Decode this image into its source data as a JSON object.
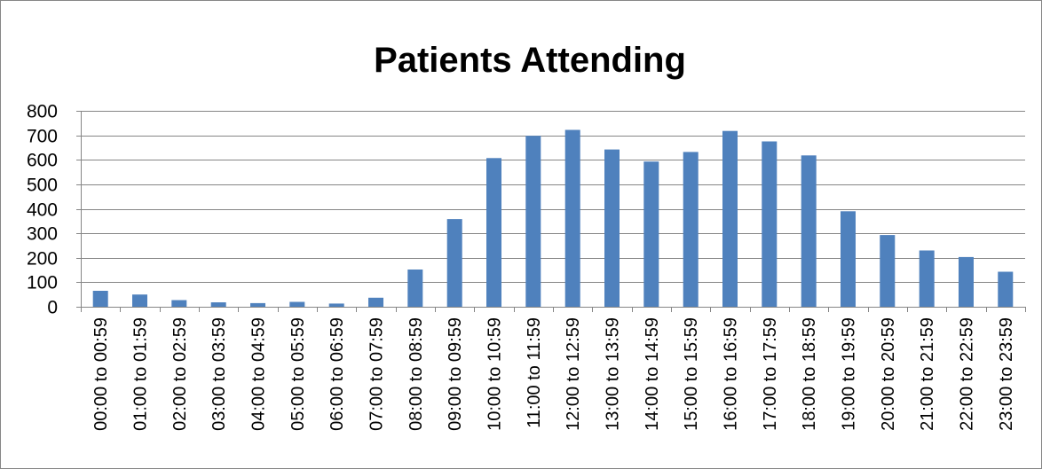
{
  "chart_data": {
    "type": "bar",
    "title": "Patients Attending",
    "xlabel": "",
    "ylabel": "",
    "ylim": [
      0,
      800
    ],
    "yticks": [
      0,
      100,
      200,
      300,
      400,
      500,
      600,
      700,
      800
    ],
    "grid": true,
    "legend": "none",
    "bar_color": "#4F81BD",
    "categories": [
      "00:00 to 00:59",
      "01:00 to 01:59",
      "02:00 to 02:59",
      "03:00 to 03:59",
      "04:00 to 04:59",
      "05:00 to 05:59",
      "06:00 to 06:59",
      "07:00 to 07:59",
      "08:00 to 08:59",
      "09:00 to 09:59",
      "10:00 to 10:59",
      "11:00 to 11:59",
      "12:00 to 12:59",
      "13:00 to 13:59",
      "14:00 to 14:59",
      "15:00 to 15:59",
      "16:00 to 16:59",
      "17:00 to 17:59",
      "18:00 to 18:59",
      "19:00 to 19:59",
      "20:00 to 20:59",
      "21:00 to 21:59",
      "22:00 to 22:59",
      "23:00 to 23:59"
    ],
    "values": [
      65,
      50,
      27,
      18,
      15,
      20,
      13,
      37,
      152,
      358,
      607,
      698,
      722,
      642,
      593,
      632,
      718,
      675,
      618,
      390,
      293,
      230,
      203,
      143
    ]
  }
}
